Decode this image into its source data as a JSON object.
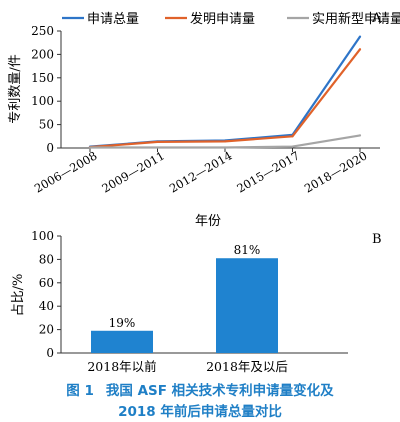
{
  "chart_data": [
    {
      "type": "line",
      "panel_label": "A",
      "categories": [
        "2006—2008",
        "2009—2011",
        "2012—2014",
        "2015—2017",
        "2018—2020"
      ],
      "series": [
        {
          "name": "申请总量",
          "color": "#2e75c8",
          "values": [
            3,
            14,
            16,
            28,
            238
          ]
        },
        {
          "name": "发明申请量",
          "color": "#e0622a",
          "values": [
            2,
            13,
            14,
            25,
            211
          ]
        },
        {
          "name": "实用新型申请量",
          "color": "#a5a5a5",
          "values": [
            1,
            1,
            1,
            3,
            27
          ]
        }
      ],
      "xlabel": "年份",
      "ylabel": "专利数量/件",
      "ylim": [
        0,
        250
      ],
      "yticks": [
        0,
        50,
        100,
        150,
        200,
        250
      ],
      "grid": false,
      "legend": "top"
    },
    {
      "type": "bar",
      "panel_label": "B",
      "categories": [
        "2018年以前",
        "2018年及以后"
      ],
      "values": [
        19,
        81
      ],
      "data_labels": [
        "19%",
        "81%"
      ],
      "bar_color": "#1f83d0",
      "ylabel": "占比/%",
      "ylim": [
        0,
        100
      ],
      "yticks": [
        0,
        20,
        40,
        60,
        80,
        100
      ],
      "grid": false
    }
  ],
  "caption": {
    "fig_no": "图 1",
    "line1": "我国 ASF 相关技术专利申请量变化及",
    "line2": "2018 年前后申请总量对比"
  }
}
